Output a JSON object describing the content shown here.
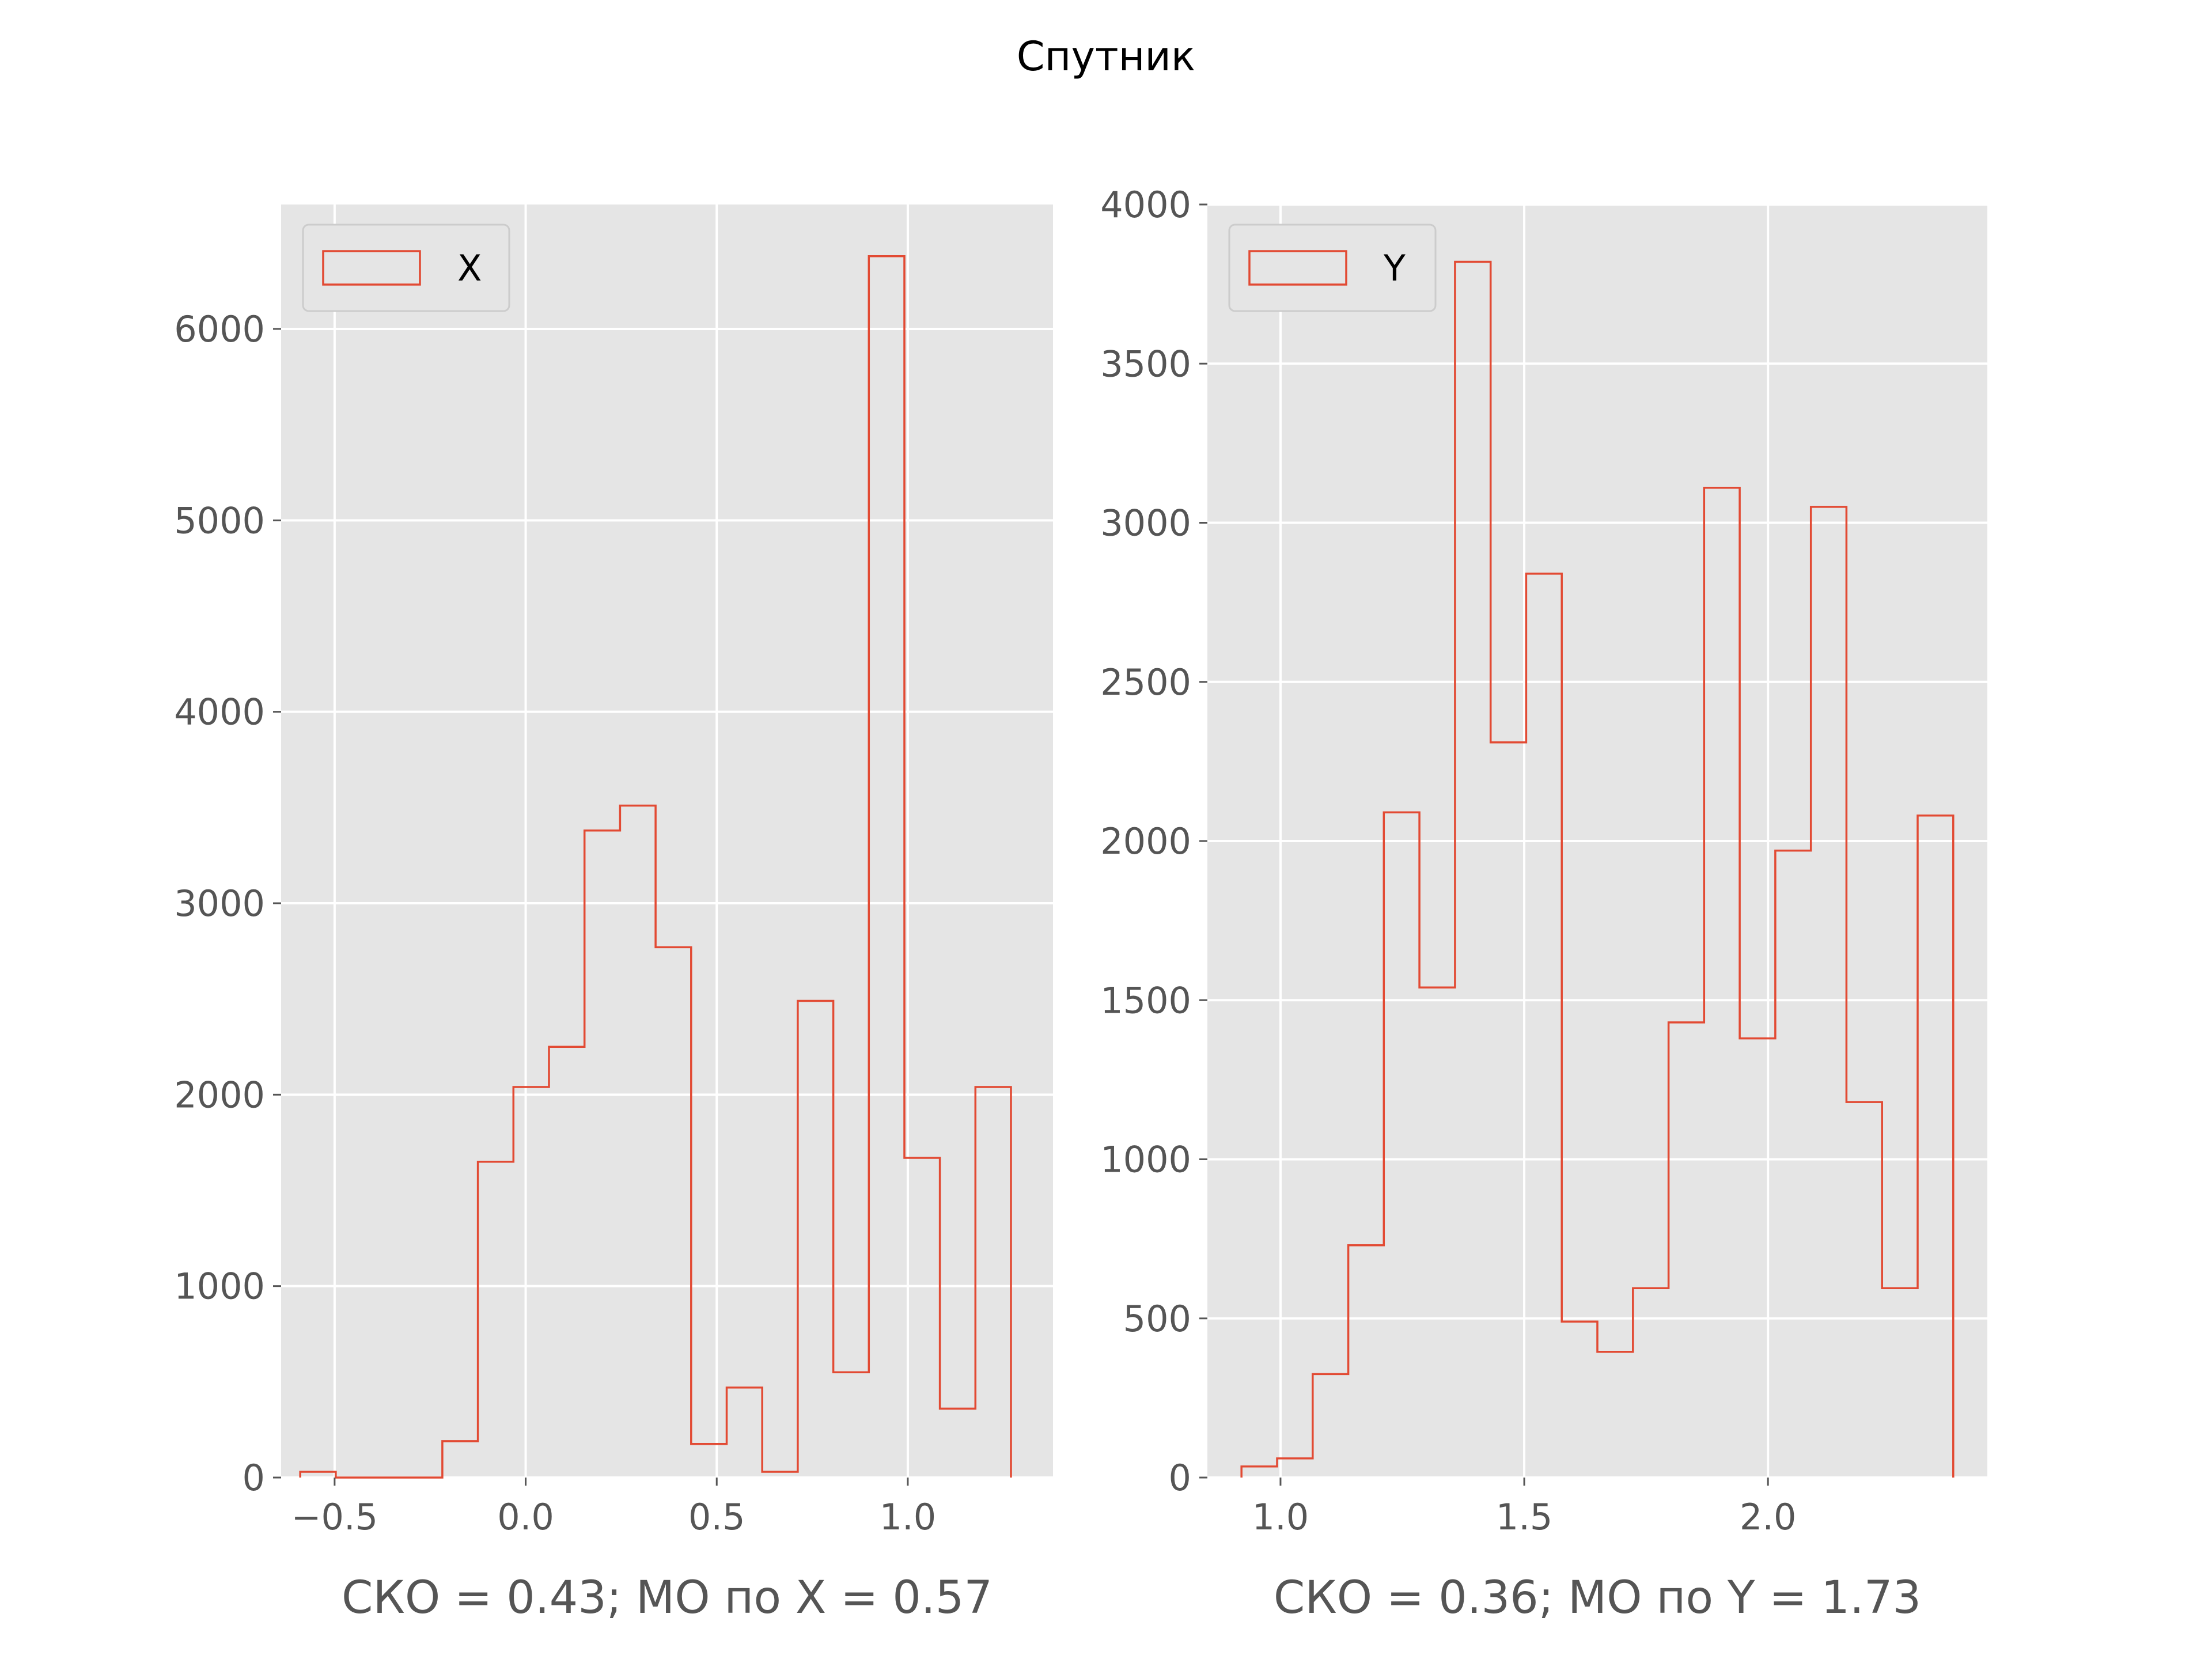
{
  "figure": {
    "title": "Спутник"
  },
  "style": {
    "background": "#ffffff",
    "axes_face": "#e5e5e5",
    "grid_color": "#ffffff",
    "hist_color": "#e24a33",
    "tick_color": "#555555"
  },
  "chart_data": [
    {
      "type": "bar",
      "histtype": "step",
      "title": "",
      "xlabel": "СКО = 0.43; МО по X = 0.57",
      "ylabel": "",
      "xlim": [
        -0.64,
        1.38
      ],
      "ylim": [
        0,
        6650
      ],
      "grid": true,
      "legend": {
        "position": "top-left",
        "entries": [
          "X"
        ]
      },
      "x_ticks": [
        -0.5,
        0.0,
        0.5,
        1.0
      ],
      "x_tick_labels": [
        "−0.5",
        "0.0",
        "0.5",
        "1.0"
      ],
      "y_ticks": [
        0,
        1000,
        2000,
        3000,
        4000,
        5000,
        6000
      ],
      "y_tick_labels": [
        "0",
        "1000",
        "2000",
        "3000",
        "4000",
        "5000",
        "6000"
      ],
      "series": [
        {
          "name": "X",
          "bin_edges": [
            -0.59,
            -0.497,
            -0.404,
            -0.311,
            -0.218,
            -0.125,
            -0.032,
            0.061,
            0.154,
            0.247,
            0.34,
            0.433,
            0.526,
            0.619,
            0.712,
            0.805,
            0.898,
            0.991,
            1.084,
            1.177,
            1.27
          ],
          "values": [
            30,
            0,
            0,
            0,
            190,
            1650,
            2040,
            2250,
            3380,
            3510,
            2770,
            175,
            470,
            30,
            2490,
            550,
            6380,
            1670,
            360,
            2040
          ]
        }
      ]
    },
    {
      "type": "bar",
      "histtype": "step",
      "title": "",
      "xlabel": "СКО = 0.36; МО по Y = 1.73",
      "ylabel": "",
      "xlim": [
        0.85,
        2.45
      ],
      "ylim": [
        0,
        4000
      ],
      "grid": true,
      "legend": {
        "position": "top-left",
        "entries": [
          "Y"
        ]
      },
      "x_ticks": [
        1.0,
        1.5,
        2.0
      ],
      "x_tick_labels": [
        "1.0",
        "1.5",
        "2.0"
      ],
      "y_ticks": [
        0,
        500,
        1000,
        1500,
        2000,
        2500,
        3000,
        3500,
        4000
      ],
      "y_tick_labels": [
        "0",
        "500",
        "1000",
        "1500",
        "2000",
        "2500",
        "3000",
        "3500",
        "4000"
      ],
      "series": [
        {
          "name": "Y",
          "bin_edges": [
            0.92,
            0.993,
            1.066,
            1.139,
            1.212,
            1.285,
            1.358,
            1.431,
            1.504,
            1.577,
            1.65,
            1.723,
            1.796,
            1.869,
            1.942,
            2.015,
            2.088,
            2.161,
            2.234,
            2.307,
            2.38
          ],
          "values": [
            35,
            60,
            325,
            730,
            2090,
            1540,
            3820,
            2310,
            2840,
            490,
            395,
            595,
            1430,
            3110,
            1380,
            1970,
            3050,
            1180,
            595,
            2080
          ]
        }
      ]
    }
  ]
}
